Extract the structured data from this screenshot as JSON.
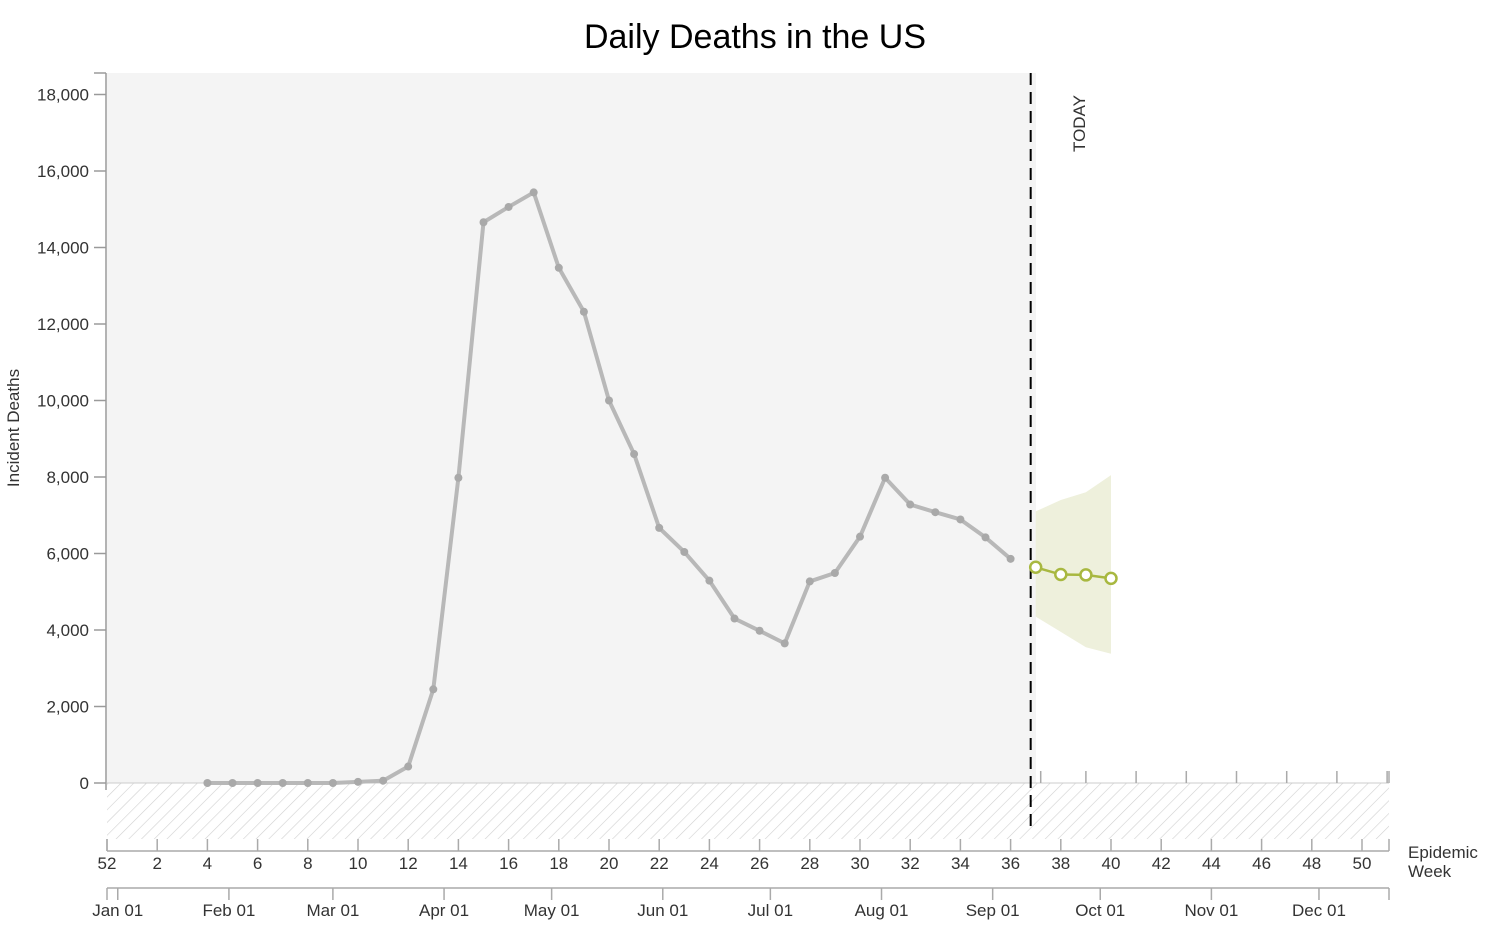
{
  "chart_data": {
    "type": "line",
    "title": "Daily Deaths in the US",
    "ylabel": "Incident Deaths",
    "xlabel": "Epidemic Week",
    "ylim": [
      -1500,
      18500
    ],
    "y_ticks": [
      0,
      2000,
      4000,
      6000,
      8000,
      10000,
      12000,
      14000,
      16000,
      18000
    ],
    "y_tick_labels": [
      "0",
      "2,000",
      "4,000",
      "6,000",
      "8,000",
      "10,000",
      "12,000",
      "14,000",
      "16,000",
      "18,000"
    ],
    "week_ticks": [
      52,
      2,
      4,
      6,
      8,
      10,
      12,
      14,
      16,
      18,
      20,
      22,
      24,
      26,
      28,
      30,
      32,
      34,
      36,
      38,
      40,
      42,
      44,
      46,
      48,
      50
    ],
    "month_ticks": [
      "Jan 01",
      "Feb 01",
      "Mar 01",
      "Apr 01",
      "May 01",
      "Jun 01",
      "Jul 01",
      "Aug 01",
      "Sep 01",
      "Oct 01",
      "Nov 01",
      "Dec 01"
    ],
    "today_label": "TODAY",
    "today_week": 37.8,
    "series": [
      {
        "kind": "observed",
        "color": "#b8b8b8",
        "x": [
          5,
          6,
          7,
          8,
          9,
          10,
          11,
          12,
          13,
          14,
          15,
          16,
          17,
          18,
          19,
          20,
          21,
          22,
          23,
          24,
          25,
          26,
          27,
          28,
          29,
          30,
          31,
          32,
          33,
          34,
          35,
          36,
          37
        ],
        "y": [
          0,
          0,
          0,
          0,
          0,
          0,
          30,
          60,
          430,
          2450,
          7980,
          14660,
          15060,
          15440,
          13470,
          12320,
          10000,
          8600,
          6670,
          6040,
          5290,
          4300,
          3980,
          3650,
          5270,
          5490,
          6440,
          7980,
          7280,
          7080,
          6890,
          6420,
          5860
        ]
      },
      {
        "kind": "forecast",
        "color": "#a8b840",
        "x": [
          38,
          39,
          40,
          41
        ],
        "y": [
          5640,
          5450,
          5440,
          5350
        ],
        "upper": [
          7100,
          7400,
          7600,
          8050
        ],
        "lower": [
          4350,
          3950,
          3550,
          3380
        ]
      }
    ],
    "colors": {
      "history_background": "#f4f4f4",
      "hatch": "#d0d0d0",
      "interval_fill": "#eef0dc",
      "today_line": "#000000"
    }
  }
}
